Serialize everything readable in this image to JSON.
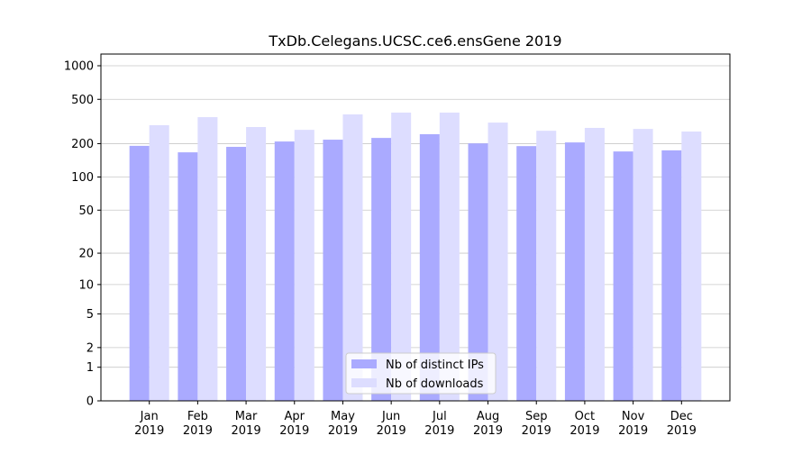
{
  "chart_data": {
    "type": "bar",
    "title": "TxDb.Celegans.UCSC.ce6.ensGene 2019",
    "categories": [
      "Jan 2019",
      "Feb 2019",
      "Mar 2019",
      "Apr 2019",
      "May 2019",
      "Jun 2019",
      "Jul 2019",
      "Aug 2019",
      "Sep 2019",
      "Oct 2019",
      "Nov 2019",
      "Dec 2019"
    ],
    "series": [
      {
        "name": "Nb of distinct IPs",
        "color": "#aaaaff",
        "values": [
          191,
          167,
          187,
          209,
          217,
          225,
          243,
          201,
          190,
          205,
          170,
          174
        ]
      },
      {
        "name": "Nb of downloads",
        "color": "#ddddff",
        "values": [
          293,
          346,
          282,
          266,
          366,
          380,
          380,
          309,
          261,
          277,
          271,
          257
        ]
      }
    ],
    "yscale": "log1p",
    "ylim": [
      0,
      1273
    ],
    "yticks": [
      0,
      1,
      2,
      5,
      10,
      20,
      50,
      100,
      200,
      500,
      1000
    ],
    "grid": true,
    "legend": "lower center"
  }
}
